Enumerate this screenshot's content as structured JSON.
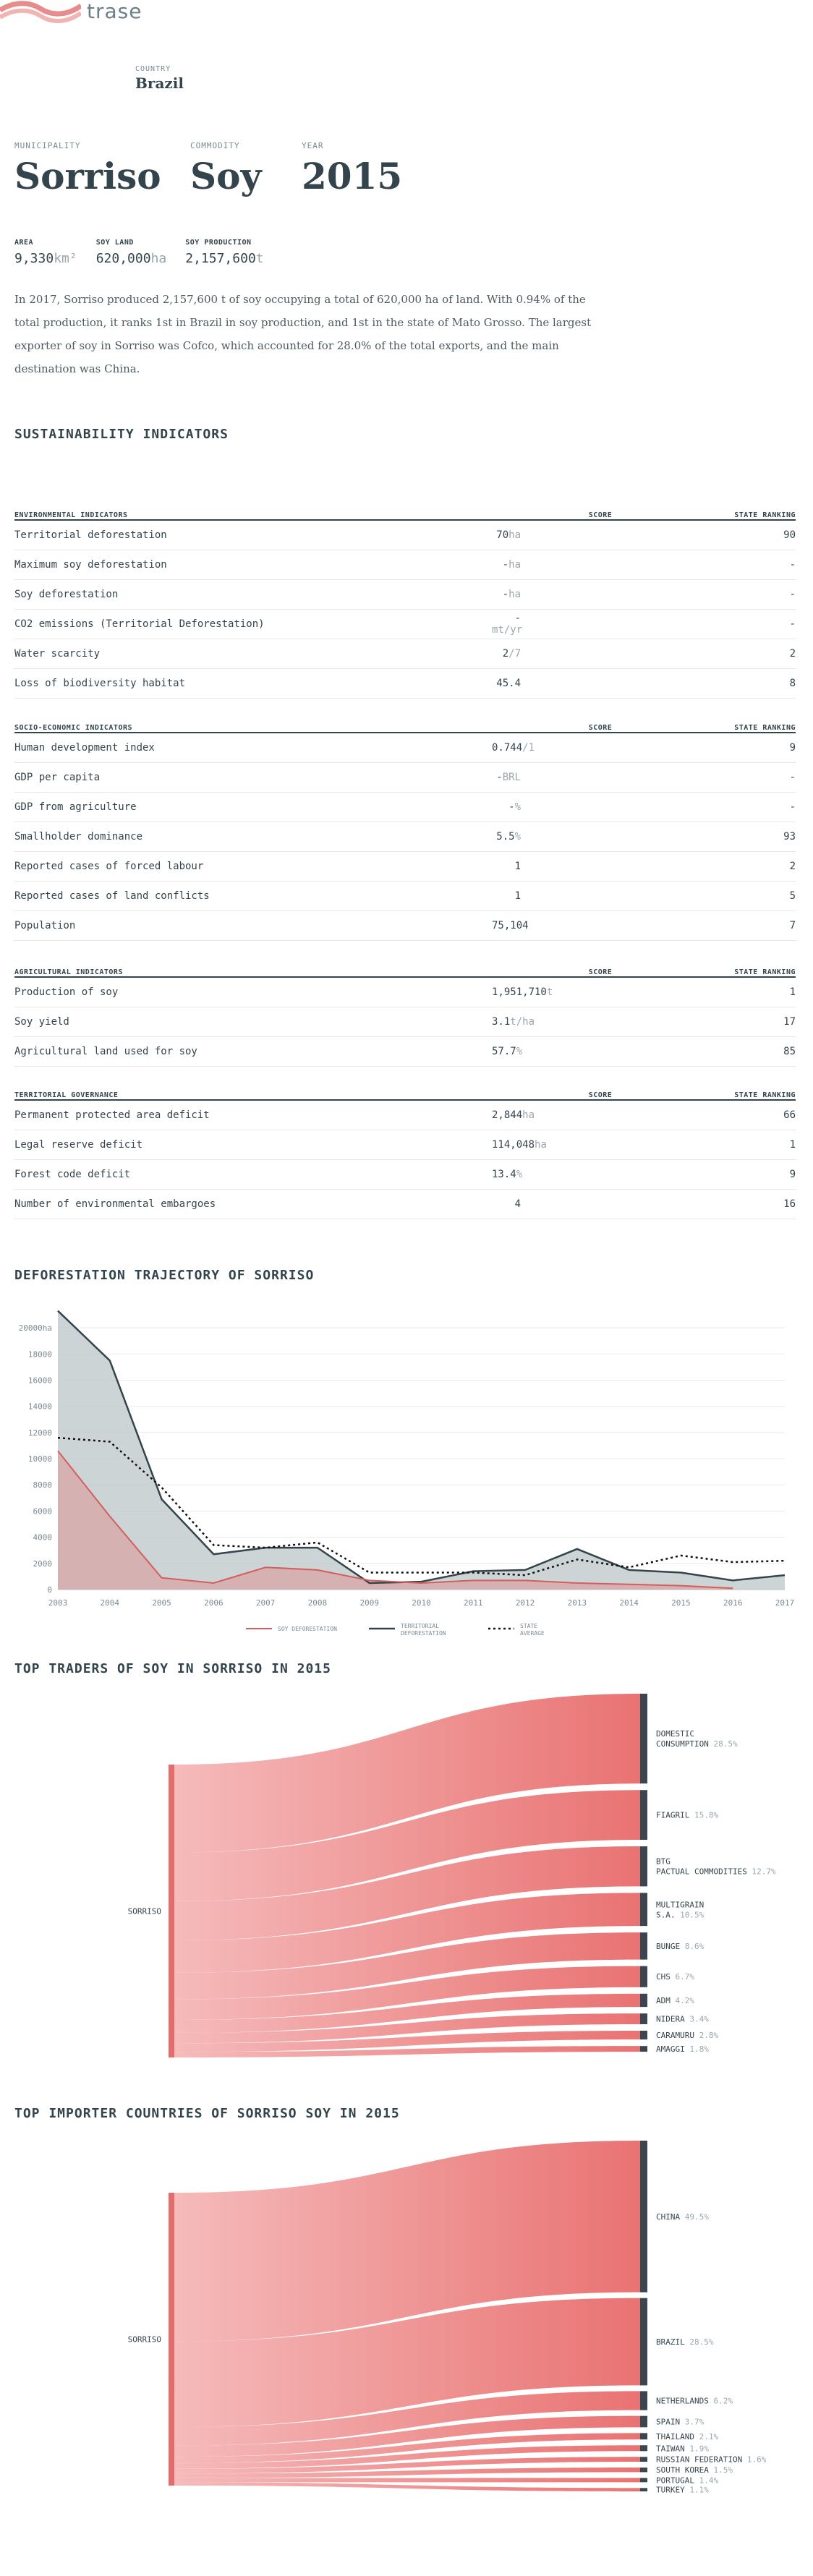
{
  "brand": {
    "name": "trase"
  },
  "country": {
    "label": "COUNTRY",
    "value": "Brazil"
  },
  "hero": {
    "municipality_label": "MUNICIPALITY",
    "municipality": "Sorriso",
    "commodity_label": "COMMODITY",
    "commodity": "Soy",
    "year_label": "YEAR",
    "year": "2015"
  },
  "stats": [
    {
      "label": "AREA",
      "value": "9,330",
      "unit": "km²"
    },
    {
      "label": "SOY LAND",
      "value": "620,000",
      "unit": "ha"
    },
    {
      "label": "SOY PRODUCTION",
      "value": "2,157,600",
      "unit": "t"
    }
  ],
  "intro": "In 2017, Sorriso produced 2,157,600 t of soy occupying a total of 620,000 ha of land. With 0.94% of the total production, it ranks 1st in Brazil in soy production, and 1st in the state of Mato Grosso. The largest exporter of soy in Sorriso was Cofco, which accounted for 28.0% of the total exports, and the main destination was China.",
  "sustainability_title": "SUSTAINABILITY INDICATORS",
  "tables": [
    {
      "header": "ENVIRONMENTAL INDICATORS",
      "score_label": "SCORE",
      "rank_label": "STATE RANKING",
      "rows": [
        {
          "name": "Territorial deforestation",
          "score": "70",
          "unit": "ha",
          "rank": "90"
        },
        {
          "name": "Maximum soy deforestation",
          "score": "-",
          "unit": "ha",
          "rank": "-"
        },
        {
          "name": "Soy deforestation",
          "score": "-",
          "unit": "ha",
          "rank": "-"
        },
        {
          "name": "CO2 emissions (Territorial Deforestation)",
          "score": "-",
          "unit": "mt/yr",
          "rank": "-"
        },
        {
          "name": "Water scarcity",
          "score": "2",
          "unit": "/7",
          "rank": "2"
        },
        {
          "name": "Loss of biodiversity habitat",
          "score": "45.4",
          "unit": "",
          "rank": "8"
        }
      ]
    },
    {
      "header": "SOCIO-ECONOMIC INDICATORS",
      "score_label": "SCORE",
      "rank_label": "STATE RANKING",
      "rows": [
        {
          "name": "Human development index",
          "score": "0.744",
          "unit": "/1",
          "rank": "9"
        },
        {
          "name": "GDP per capita",
          "score": "-",
          "unit": "BRL",
          "rank": "-"
        },
        {
          "name": "GDP from agriculture",
          "score": "-",
          "unit": "%",
          "rank": "-"
        },
        {
          "name": "Smallholder dominance",
          "score": "5.5",
          "unit": "%",
          "rank": "93"
        },
        {
          "name": "Reported cases of forced labour",
          "score": "1",
          "unit": "",
          "rank": "2"
        },
        {
          "name": "Reported cases of land conflicts",
          "score": "1",
          "unit": "",
          "rank": "5"
        },
        {
          "name": "Population",
          "score": "75,104",
          "unit": "",
          "rank": "7"
        }
      ]
    },
    {
      "header": "AGRICULTURAL INDICATORS",
      "score_label": "SCORE",
      "rank_label": "STATE RANKING",
      "rows": [
        {
          "name": "Production of soy",
          "score": "1,951,710",
          "unit": "t",
          "rank": "1"
        },
        {
          "name": "Soy yield",
          "score": "3.1",
          "unit": "t/ha",
          "rank": "17"
        },
        {
          "name": "Agricultural land used for soy",
          "score": "57.7",
          "unit": "%",
          "rank": "85"
        }
      ]
    },
    {
      "header": "TERRITORIAL GOVERNANCE",
      "score_label": "SCORE",
      "rank_label": "STATE RANKING",
      "rows": [
        {
          "name": "Permanent protected area deficit",
          "score": "2,844",
          "unit": "ha",
          "rank": "66"
        },
        {
          "name": "Legal reserve deficit",
          "score": "114,048",
          "unit": "ha",
          "rank": "1"
        },
        {
          "name": "Forest code deficit",
          "score": "13.4",
          "unit": "%",
          "rank": "9"
        },
        {
          "name": "Number of environmental embargoes",
          "score": "4",
          "unit": "",
          "rank": "16"
        }
      ]
    }
  ],
  "deforestation_title": "DEFORESTATION TRAJECTORY OF SORRISO",
  "chart_data": {
    "type": "area",
    "x": [
      2003,
      2004,
      2005,
      2006,
      2007,
      2008,
      2009,
      2010,
      2011,
      2012,
      2013,
      2014,
      2015,
      2016,
      2017
    ],
    "ylim": [
      0,
      21000
    ],
    "yticks": [
      0,
      2000,
      4000,
      6000,
      8000,
      10000,
      12000,
      14000,
      16000,
      18000,
      20000
    ],
    "yunit": "ha",
    "grid": true,
    "legend_position": "bottom",
    "series": [
      {
        "name": "SOY DEFORESTATION",
        "color": "#d45d5d",
        "style": "area-line",
        "values": [
          10600,
          5600,
          900,
          500,
          1700,
          1500,
          700,
          500,
          700,
          700,
          500,
          400,
          300,
          100,
          null
        ]
      },
      {
        "name": "TERRITORIAL DEFORESTATION",
        "color": "#34444c",
        "style": "area-line",
        "values": [
          21300,
          17500,
          6900,
          2700,
          3200,
          3200,
          500,
          600,
          1400,
          1500,
          3100,
          1500,
          1300,
          700,
          1100
        ]
      },
      {
        "name": "STATE AVERAGE",
        "color": "#111111",
        "style": "dotted",
        "values": [
          11600,
          11300,
          7800,
          3400,
          3200,
          3600,
          1300,
          1300,
          1300,
          1100,
          2300,
          1700,
          2600,
          2100,
          2200
        ]
      }
    ]
  },
  "traders_title": "TOP TRADERS OF SOY IN SORRISO IN 2015",
  "traders": {
    "source": "SORRISO",
    "items": [
      {
        "name": "DOMESTIC CONSUMPTION",
        "pct": "28.5%",
        "share": 28.5
      },
      {
        "name": "FIAGRIL",
        "pct": "15.8%",
        "share": 15.8
      },
      {
        "name": "BTG PACTUAL COMMODITIES",
        "pct": "12.7%",
        "share": 12.7
      },
      {
        "name": "MULTIGRAIN S.A.",
        "pct": "10.5%",
        "share": 10.5
      },
      {
        "name": "BUNGE",
        "pct": "8.6%",
        "share": 8.6
      },
      {
        "name": "CHS",
        "pct": "6.7%",
        "share": 6.7
      },
      {
        "name": "ADM",
        "pct": "4.2%",
        "share": 4.2
      },
      {
        "name": "NIDERA",
        "pct": "3.4%",
        "share": 3.4
      },
      {
        "name": "CARAMURU",
        "pct": "2.8%",
        "share": 2.8
      },
      {
        "name": "AMAGGI",
        "pct": "1.8%",
        "share": 1.8
      }
    ]
  },
  "importers_title": "TOP IMPORTER COUNTRIES OF SORRISO SOY IN 2015",
  "importers": {
    "source": "SORRISO",
    "items": [
      {
        "name": "CHINA",
        "pct": "49.5%",
        "share": 49.5
      },
      {
        "name": "BRAZIL",
        "pct": "28.5%",
        "share": 28.5
      },
      {
        "name": "NETHERLANDS",
        "pct": "6.2%",
        "share": 6.2
      },
      {
        "name": "SPAIN",
        "pct": "3.7%",
        "share": 3.7
      },
      {
        "name": "THAILAND",
        "pct": "2.1%",
        "share": 2.1
      },
      {
        "name": "TAIWAN",
        "pct": "1.9%",
        "share": 1.9
      },
      {
        "name": "RUSSIAN FEDERATION",
        "pct": "1.6%",
        "share": 1.6
      },
      {
        "name": "SOUTH KOREA",
        "pct": "1.5%",
        "share": 1.5
      },
      {
        "name": "PORTUGAL",
        "pct": "1.4%",
        "share": 1.4
      },
      {
        "name": "TURKEY",
        "pct": "1.1%",
        "share": 1.1
      }
    ]
  },
  "colors": {
    "accent": "#e36d6d",
    "dark": "#34444c",
    "node": "#3c4650",
    "flow_light": "#f5b7b7",
    "flow_dark": "#e86b6b"
  }
}
